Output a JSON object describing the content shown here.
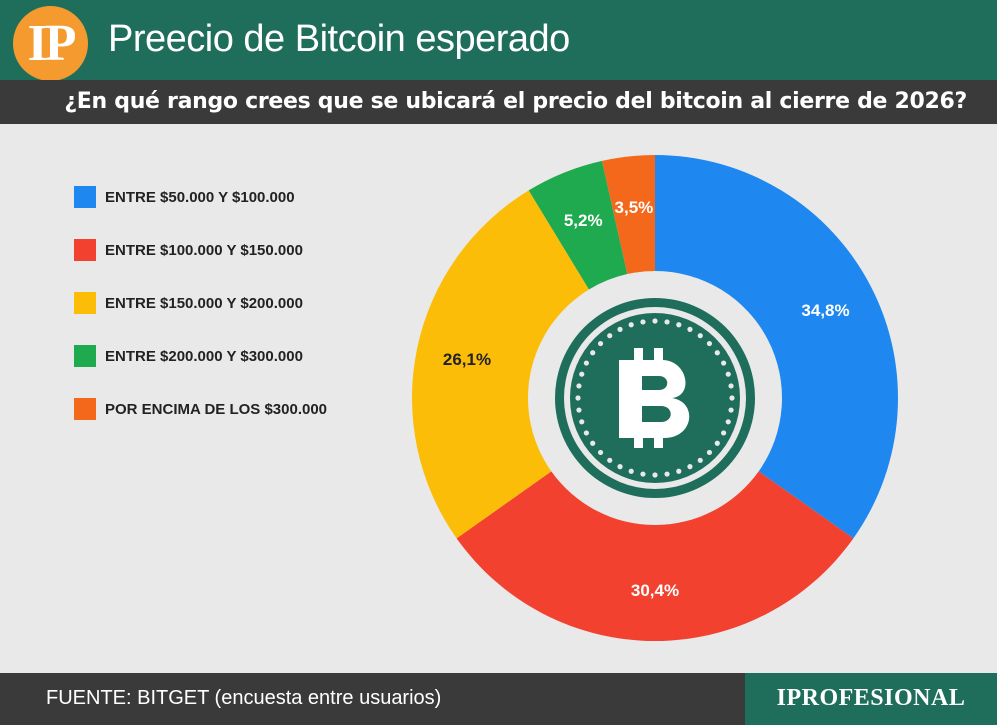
{
  "header": {
    "logo_text": "IP",
    "title": "Preecio de Bitcoin esperado",
    "subtitle": "¿En qué rango crees que se ubicará el precio del bitcoin al cierre de 2026?"
  },
  "footer": {
    "source": "FUENTE: BITGET (encuesta entre usuarios)",
    "brand": "IPROFESIONAL"
  },
  "colors": {
    "header_green": "#1f6e5c",
    "dark_bar": "#3a3a3a",
    "logo_orange": "#f59a2e",
    "background": "#e9e9e9"
  },
  "center_icon": "bitcoin-coin-icon",
  "chart_data": {
    "type": "pie",
    "donut": true,
    "categories": [
      "ENTRE $50.000 Y $100.000",
      "ENTRE $100.000 Y $150.000",
      "ENTRE $150.000 Y $200.000",
      "ENTRE $200.000 Y $300.000",
      "POR ENCIMA DE LOS $300.000"
    ],
    "values": [
      34.8,
      30.4,
      26.1,
      5.2,
      3.5
    ],
    "labels": [
      "34,8%",
      "30,4%",
      "26,1%",
      "5,2%",
      "3,5%"
    ],
    "colors": [
      "#1e88f0",
      "#f2412f",
      "#fbbd08",
      "#1faa4f",
      "#f4681c"
    ],
    "label_colors": [
      "#ffffff",
      "#ffffff",
      "#222222",
      "#ffffff",
      "#ffffff"
    ],
    "legend_position": "left"
  }
}
